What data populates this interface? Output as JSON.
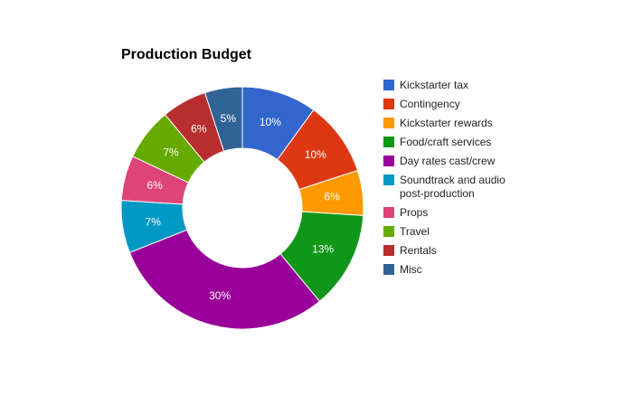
{
  "chart_data": {
    "type": "pie",
    "title": "Production Budget",
    "donut": true,
    "legend_position": "right",
    "slices": [
      {
        "label": "Kickstarter tax",
        "legend_lines": [
          "Kickstarter tax"
        ],
        "value": 10,
        "display": "10%",
        "color": "#3366cc"
      },
      {
        "label": "Contingency",
        "legend_lines": [
          "Contingency"
        ],
        "value": 10,
        "display": "10%",
        "color": "#dc3912"
      },
      {
        "label": "Kickstarter rewards",
        "legend_lines": [
          "Kickstarter rewards"
        ],
        "value": 6,
        "display": "6%",
        "color": "#ff9900"
      },
      {
        "label": "Food/craft services",
        "legend_lines": [
          "Food/craft services"
        ],
        "value": 13,
        "display": "13%",
        "color": "#109618"
      },
      {
        "label": "Day rates cast/crew",
        "legend_lines": [
          "Day rates cast/crew"
        ],
        "value": 30,
        "display": "30%",
        "color": "#990099"
      },
      {
        "label": "Soundtrack and audio post-production",
        "legend_lines": [
          "Soundtrack and audio",
          "post-production"
        ],
        "value": 7,
        "display": "7%",
        "color": "#0099c6"
      },
      {
        "label": "Props",
        "legend_lines": [
          "Props"
        ],
        "value": 6,
        "display": "6%",
        "color": "#dd4477"
      },
      {
        "label": "Travel",
        "legend_lines": [
          "Travel"
        ],
        "value": 7,
        "display": "7%",
        "color": "#66aa00"
      },
      {
        "label": "Rentals",
        "legend_lines": [
          "Rentals"
        ],
        "value": 6,
        "display": "6%",
        "color": "#b82e2e"
      },
      {
        "label": "Misc",
        "legend_lines": [
          "Misc"
        ],
        "value": 5,
        "display": "5%",
        "color": "#316395"
      }
    ]
  }
}
